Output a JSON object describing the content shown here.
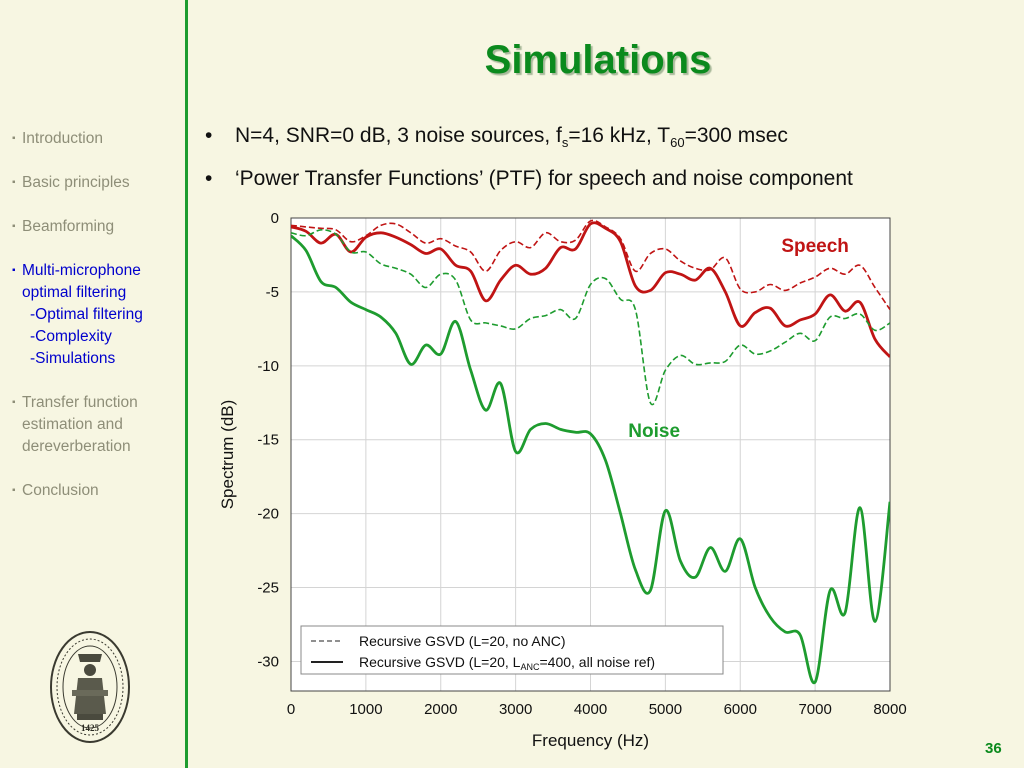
{
  "slide": {
    "title": "Simulations",
    "page_number": "36",
    "seal_year": "1425"
  },
  "nav": {
    "introduction": "Introduction",
    "basic_principles": "Basic principles",
    "beamforming": "Beamforming",
    "multi_mic_line1": "Multi-microphone",
    "multi_mic_line2": "optimal filtering",
    "sub_optimal": "-Optimal filtering",
    "sub_complexity": "-Complexity",
    "sub_simulations": "-Simulations",
    "transfer_line1": "Transfer function",
    "transfer_line2": "estimation and",
    "transfer_line3": "dereverberation",
    "conclusion": "Conclusion"
  },
  "bullets": {
    "b1_a": "N=4, SNR=0 dB, 3 noise sources, f",
    "b1_sub1": "s",
    "b1_b": "=16 kHz, T",
    "b1_sub2": "60",
    "b1_c": "=300 msec",
    "b2": "‘Power Transfer Functions’ (PTF) for speech and noise component"
  },
  "colors": {
    "speech": "#c01414",
    "noise": "#1e9c2f",
    "title": "#0b8a1d",
    "background": "#f7f6e2"
  },
  "chart_data": {
    "type": "line",
    "xlabel": "Frequency (Hz)",
    "ylabel": "Spectrum (dB)",
    "xlim": [
      0,
      8000
    ],
    "ylim": [
      -32,
      0
    ],
    "xticks": [
      0,
      1000,
      2000,
      3000,
      4000,
      5000,
      6000,
      7000,
      8000
    ],
    "yticks": [
      0,
      -5,
      -10,
      -15,
      -20,
      -25,
      -30
    ],
    "grid": true,
    "annotations": [
      {
        "text": "Speech",
        "color": "#c01414",
        "x": 7000,
        "y": -2.3
      },
      {
        "text": "Noise",
        "color": "#1e9c2f",
        "x": 4850,
        "y": -14.8
      }
    ],
    "legend": {
      "placement": "bottom-left",
      "entries": [
        {
          "style": "dashed",
          "label_a": "Recursive GSVD (L=20, no ANC)",
          "label_sub": "",
          "label_b": ""
        },
        {
          "style": "solid",
          "label_a": "Recursive GSVD (L=20, L",
          "label_sub": "ANC",
          "label_b": "=400, all noise ref)"
        }
      ]
    },
    "x": [
      0,
      200,
      400,
      600,
      800,
      1000,
      1200,
      1400,
      1600,
      1800,
      2000,
      2200,
      2400,
      2600,
      2800,
      3000,
      3200,
      3400,
      3600,
      3800,
      4000,
      4200,
      4400,
      4600,
      4800,
      5000,
      5200,
      5400,
      5600,
      5800,
      6000,
      6200,
      6400,
      6600,
      6800,
      7000,
      7200,
      7400,
      7600,
      7800,
      8000
    ],
    "series": [
      {
        "key": "speech_no_anc",
        "color": "#c01414",
        "style": "dashed",
        "values": [
          -0.5,
          -0.6,
          -0.7,
          -0.8,
          -1.6,
          -1.2,
          -0.5,
          -0.4,
          -1.0,
          -1.7,
          -1.4,
          -1.9,
          -2.3,
          -3.6,
          -2.2,
          -1.6,
          -2.0,
          -1.0,
          -1.6,
          -1.5,
          -0.2,
          -0.6,
          -1.4,
          -3.6,
          -2.4,
          -2.1,
          -2.9,
          -3.4,
          -3.5,
          -2.7,
          -4.8,
          -5.0,
          -4.5,
          -4.9,
          -4.4,
          -4.0,
          -3.4,
          -3.8,
          -3.2,
          -4.7,
          -6.2
        ]
      },
      {
        "key": "speech_anc",
        "color": "#c01414",
        "style": "solid",
        "values": [
          -0.6,
          -0.9,
          -1.7,
          -1.1,
          -2.3,
          -1.3,
          -1.0,
          -1.3,
          -1.8,
          -2.4,
          -2.1,
          -3.2,
          -3.6,
          -5.6,
          -4.2,
          -3.2,
          -3.8,
          -3.4,
          -2.0,
          -2.1,
          -0.4,
          -0.7,
          -1.6,
          -4.6,
          -4.9,
          -3.7,
          -3.8,
          -4.2,
          -3.4,
          -5.0,
          -7.3,
          -6.4,
          -6.1,
          -7.3,
          -6.9,
          -6.5,
          -5.2,
          -6.3,
          -5.7,
          -8.2,
          -9.4
        ]
      },
      {
        "key": "noise_no_anc",
        "color": "#1e9c2f",
        "style": "dashed",
        "values": [
          -1.0,
          -1.2,
          -0.8,
          -1.1,
          -2.3,
          -2.3,
          -3.1,
          -3.4,
          -3.8,
          -4.7,
          -3.8,
          -4.2,
          -6.9,
          -7.1,
          -7.3,
          -7.5,
          -6.8,
          -6.6,
          -6.2,
          -6.8,
          -4.5,
          -4.1,
          -5.5,
          -6.2,
          -12.5,
          -10.3,
          -9.3,
          -9.9,
          -9.8,
          -9.7,
          -8.6,
          -9.2,
          -9.0,
          -8.4,
          -7.8,
          -8.3,
          -6.7,
          -6.8,
          -6.5,
          -7.6,
          -7.1
        ]
      },
      {
        "key": "noise_anc",
        "color": "#1e9c2f",
        "style": "solid",
        "values": [
          -1.2,
          -2.2,
          -4.3,
          -4.7,
          -5.7,
          -6.2,
          -6.7,
          -7.8,
          -9.9,
          -8.6,
          -9.2,
          -7.0,
          -10.3,
          -13.0,
          -11.2,
          -15.8,
          -14.3,
          -13.9,
          -14.3,
          -14.5,
          -14.6,
          -16.4,
          -20.0,
          -23.8,
          -25.2,
          -19.8,
          -23.2,
          -24.3,
          -22.3,
          -23.9,
          -21.7,
          -25.0,
          -27.0,
          -28.0,
          -28.2,
          -31.4,
          -25.2,
          -26.7,
          -19.6,
          -27.3,
          -19.2
        ]
      }
    ]
  }
}
